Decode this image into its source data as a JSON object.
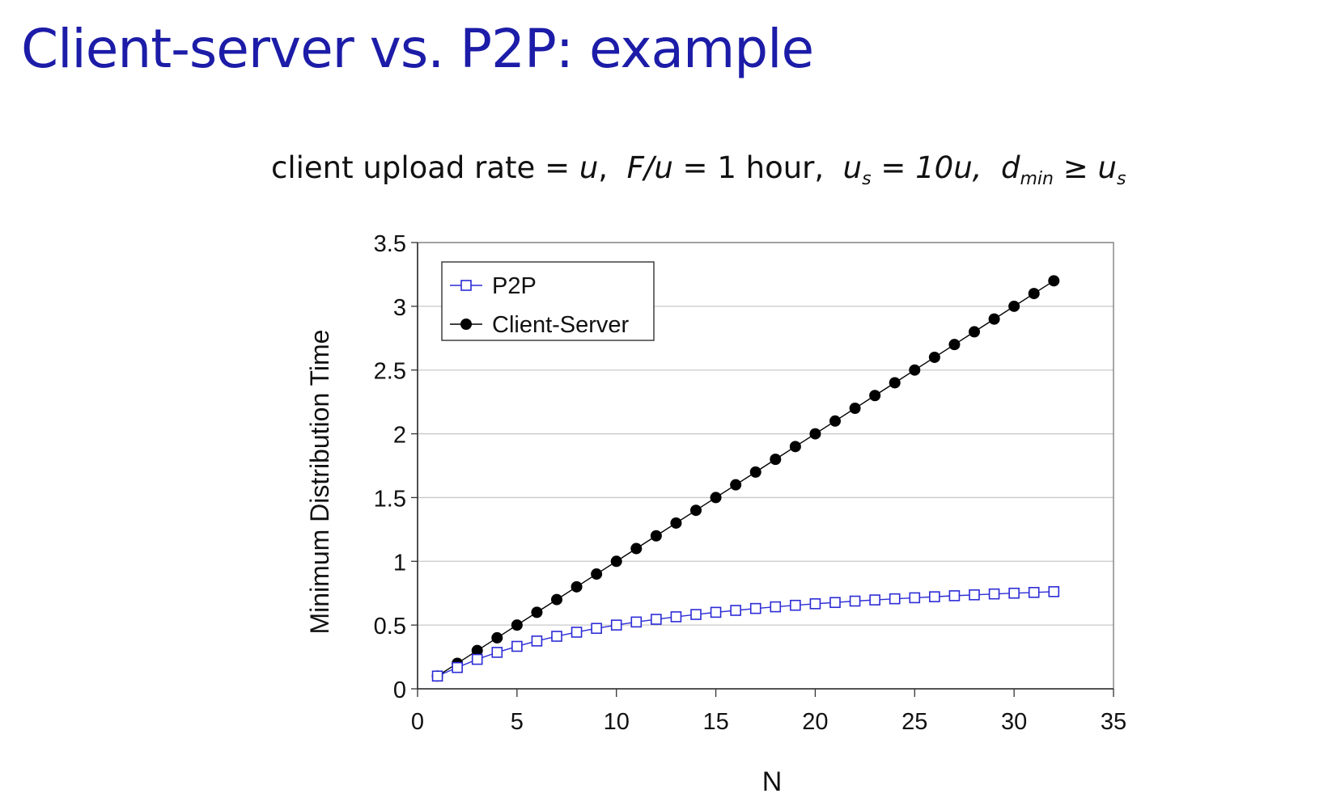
{
  "slide": {
    "title": "Client-server vs. P2P: example",
    "conditions": {
      "c1": "client upload rate = ",
      "c1_var": "u",
      "c2_var": "F/u",
      "c2_rest": " = 1 hour,",
      "c3_var": "u",
      "c3_sub": "s",
      "c3_rest": " = 10u,",
      "c4_var": "d",
      "c4_sub": "min",
      "c4_rel": " ≥ ",
      "c4_rhs": "u",
      "c4_rhs_sub": "s"
    }
  },
  "chart_data": {
    "type": "line",
    "xlabel": "N",
    "ylabel": "Minimum Distribution Time",
    "xlim": [
      0,
      35
    ],
    "ylim": [
      0,
      3.5
    ],
    "xticks": [
      "0",
      "5",
      "10",
      "15",
      "20",
      "25",
      "30",
      "35"
    ],
    "yticks": [
      "0",
      "0.5",
      "1",
      "1.5",
      "2",
      "2.5",
      "3",
      "3.5"
    ],
    "grid": "horizontal",
    "legend_position": "top-left",
    "x": [
      1,
      2,
      3,
      4,
      5,
      6,
      7,
      8,
      9,
      10,
      11,
      12,
      13,
      14,
      15,
      16,
      17,
      18,
      19,
      20,
      21,
      22,
      23,
      24,
      25,
      26,
      27,
      28,
      29,
      30,
      31,
      32
    ],
    "series": [
      {
        "name": "P2P",
        "marker": "open-square",
        "color": "#2b2bd6",
        "values": [
          0.1,
          0.167,
          0.231,
          0.286,
          0.333,
          0.375,
          0.412,
          0.444,
          0.474,
          0.5,
          0.524,
          0.545,
          0.565,
          0.583,
          0.6,
          0.615,
          0.63,
          0.643,
          0.655,
          0.667,
          0.677,
          0.688,
          0.697,
          0.706,
          0.714,
          0.722,
          0.73,
          0.737,
          0.744,
          0.75,
          0.756,
          0.762
        ]
      },
      {
        "name": "Client-Server",
        "marker": "filled-circle",
        "color": "#000000",
        "values": [
          0.1,
          0.2,
          0.3,
          0.4,
          0.5,
          0.6,
          0.7,
          0.8,
          0.9,
          1.0,
          1.1,
          1.2,
          1.3,
          1.4,
          1.5,
          1.6,
          1.7,
          1.8,
          1.9,
          2.0,
          2.1,
          2.2,
          2.3,
          2.4,
          2.5,
          2.6,
          2.7,
          2.8,
          2.9,
          3.0,
          3.1,
          3.2
        ]
      }
    ]
  }
}
